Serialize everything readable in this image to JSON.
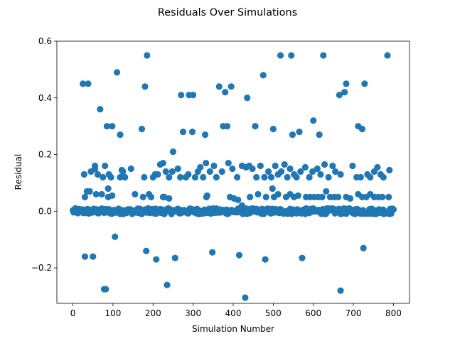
{
  "chart_data": {
    "type": "scatter",
    "title": "Residuals Over Simulations",
    "xlabel": "Simulation Number",
    "ylabel": "Residual",
    "xlim": [
      -40,
      840
    ],
    "ylim": [
      -0.325,
      0.6
    ],
    "xticks": [
      0,
      100,
      200,
      300,
      400,
      500,
      600,
      700,
      800
    ],
    "yticks": [
      -0.2,
      0.0,
      0.2,
      0.4,
      0.6
    ],
    "ytick_labels": [
      "−0.2",
      "0.0",
      "0.2",
      "0.4",
      "0.6"
    ],
    "grid": false,
    "color": "#1f77b4",
    "outliers": [
      [
        25,
        0.45
      ],
      [
        30,
        -0.16
      ],
      [
        35,
        0.07
      ],
      [
        38,
        0.45
      ],
      [
        50,
        -0.16
      ],
      [
        55,
        0.15
      ],
      [
        68,
        0.36
      ],
      [
        78,
        -0.275
      ],
      [
        82,
        -0.275
      ],
      [
        85,
        0.3
      ],
      [
        88,
        0.08
      ],
      [
        98,
        0.3
      ],
      [
        105,
        -0.09
      ],
      [
        110,
        0.49
      ],
      [
        118,
        0.27
      ],
      [
        125,
        0.14
      ],
      [
        145,
        0.15
      ],
      [
        172,
        0.29
      ],
      [
        180,
        0.44
      ],
      [
        183,
        -0.14
      ],
      [
        185,
        0.55
      ],
      [
        205,
        0.13
      ],
      [
        208,
        -0.17
      ],
      [
        228,
        0.05
      ],
      [
        235,
        -0.26
      ],
      [
        250,
        0.21
      ],
      [
        255,
        -0.165
      ],
      [
        270,
        0.41
      ],
      [
        275,
        0.28
      ],
      [
        290,
        0.41
      ],
      [
        298,
        0.28
      ],
      [
        300,
        0.41
      ],
      [
        330,
        0.27
      ],
      [
        335,
        0.055
      ],
      [
        348,
        -0.145
      ],
      [
        365,
        0.44
      ],
      [
        375,
        0.3
      ],
      [
        380,
        0.42
      ],
      [
        385,
        0.3
      ],
      [
        395,
        0.44
      ],
      [
        415,
        -0.155
      ],
      [
        422,
        0.02
      ],
      [
        430,
        -0.305
      ],
      [
        435,
        0.4
      ],
      [
        455,
        0.3
      ],
      [
        475,
        0.48
      ],
      [
        480,
        -0.17
      ],
      [
        500,
        0.29
      ],
      [
        518,
        0.55
      ],
      [
        545,
        0.55
      ],
      [
        548,
        0.27
      ],
      [
        565,
        0.28
      ],
      [
        572,
        -0.165
      ],
      [
        600,
        0.32
      ],
      [
        615,
        0.27
      ],
      [
        625,
        0.55
      ],
      [
        665,
        0.41
      ],
      [
        668,
        -0.28
      ],
      [
        678,
        0.42
      ],
      [
        682,
        0.45
      ],
      [
        712,
        0.3
      ],
      [
        722,
        0.29
      ],
      [
        725,
        -0.13
      ],
      [
        728,
        0.45
      ],
      [
        785,
        0.55
      ]
    ],
    "band_012": [
      [
        28,
        0.13
      ],
      [
        45,
        0.14
      ],
      [
        55,
        0.16
      ],
      [
        62,
        0.13
      ],
      [
        75,
        0.12
      ],
      [
        80,
        0.16
      ],
      [
        90,
        0.13
      ],
      [
        95,
        0.12
      ],
      [
        118,
        0.12
      ],
      [
        122,
        0.145
      ],
      [
        130,
        0.12
      ],
      [
        178,
        0.12
      ],
      [
        200,
        0.12
      ],
      [
        212,
        0.13
      ],
      [
        218,
        0.165
      ],
      [
        225,
        0.17
      ],
      [
        232,
        0.14
      ],
      [
        240,
        0.12
      ],
      [
        248,
        0.14
      ],
      [
        262,
        0.15
      ],
      [
        268,
        0.12
      ],
      [
        282,
        0.12
      ],
      [
        288,
        0.13
      ],
      [
        305,
        0.12
      ],
      [
        312,
        0.14
      ],
      [
        318,
        0.155
      ],
      [
        325,
        0.12
      ],
      [
        332,
        0.17
      ],
      [
        342,
        0.14
      ],
      [
        352,
        0.16
      ],
      [
        358,
        0.12
      ],
      [
        372,
        0.14
      ],
      [
        388,
        0.17
      ],
      [
        398,
        0.15
      ],
      [
        410,
        0.12
      ],
      [
        422,
        0.16
      ],
      [
        432,
        0.155
      ],
      [
        440,
        0.16
      ],
      [
        448,
        0.15
      ],
      [
        458,
        0.12
      ],
      [
        468,
        0.16
      ],
      [
        478,
        0.12
      ],
      [
        488,
        0.14
      ],
      [
        495,
        0.12
      ],
      [
        505,
        0.16
      ],
      [
        512,
        0.13
      ],
      [
        520,
        0.14
      ],
      [
        528,
        0.165
      ],
      [
        535,
        0.12
      ],
      [
        542,
        0.15
      ],
      [
        552,
        0.13
      ],
      [
        558,
        0.12
      ],
      [
        568,
        0.14
      ],
      [
        580,
        0.155
      ],
      [
        590,
        0.12
      ],
      [
        598,
        0.14
      ],
      [
        610,
        0.15
      ],
      [
        618,
        0.13
      ],
      [
        628,
        0.165
      ],
      [
        638,
        0.12
      ],
      [
        648,
        0.16
      ],
      [
        655,
        0.14
      ],
      [
        668,
        0.13
      ],
      [
        698,
        0.16
      ],
      [
        708,
        0.12
      ],
      [
        718,
        0.12
      ],
      [
        735,
        0.13
      ],
      [
        742,
        0.12
      ],
      [
        752,
        0.14
      ],
      [
        760,
        0.155
      ],
      [
        768,
        0.13
      ],
      [
        775,
        0.12
      ],
      [
        790,
        0.145
      ]
    ],
    "band_005": [
      [
        30,
        0.05
      ],
      [
        42,
        0.07
      ],
      [
        58,
        0.06
      ],
      [
        72,
        0.06
      ],
      [
        88,
        0.05
      ],
      [
        98,
        0.055
      ],
      [
        155,
        0.06
      ],
      [
        175,
        0.05
      ],
      [
        190,
        0.06
      ],
      [
        195,
        0.05
      ],
      [
        225,
        0.05
      ],
      [
        240,
        0.045
      ],
      [
        333,
        0.05
      ],
      [
        392,
        0.05
      ],
      [
        402,
        0.045
      ],
      [
        412,
        0.04
      ],
      [
        442,
        0.05
      ],
      [
        462,
        0.06
      ],
      [
        482,
        0.05
      ],
      [
        498,
        0.08
      ],
      [
        502,
        0.05
      ],
      [
        512,
        0.06
      ],
      [
        532,
        0.05
      ],
      [
        542,
        0.06
      ],
      [
        552,
        0.05
      ],
      [
        562,
        0.055
      ],
      [
        582,
        0.05
      ],
      [
        592,
        0.05
      ],
      [
        602,
        0.05
      ],
      [
        612,
        0.05
      ],
      [
        622,
        0.05
      ],
      [
        632,
        0.07
      ],
      [
        642,
        0.05
      ],
      [
        652,
        0.05
      ],
      [
        662,
        0.05
      ],
      [
        682,
        0.05
      ],
      [
        692,
        0.045
      ],
      [
        712,
        0.06
      ],
      [
        722,
        0.05
      ],
      [
        732,
        0.05
      ],
      [
        742,
        0.06
      ],
      [
        752,
        0.05
      ],
      [
        762,
        0.05
      ],
      [
        772,
        0.05
      ],
      [
        788,
        0.05
      ]
    ]
  }
}
